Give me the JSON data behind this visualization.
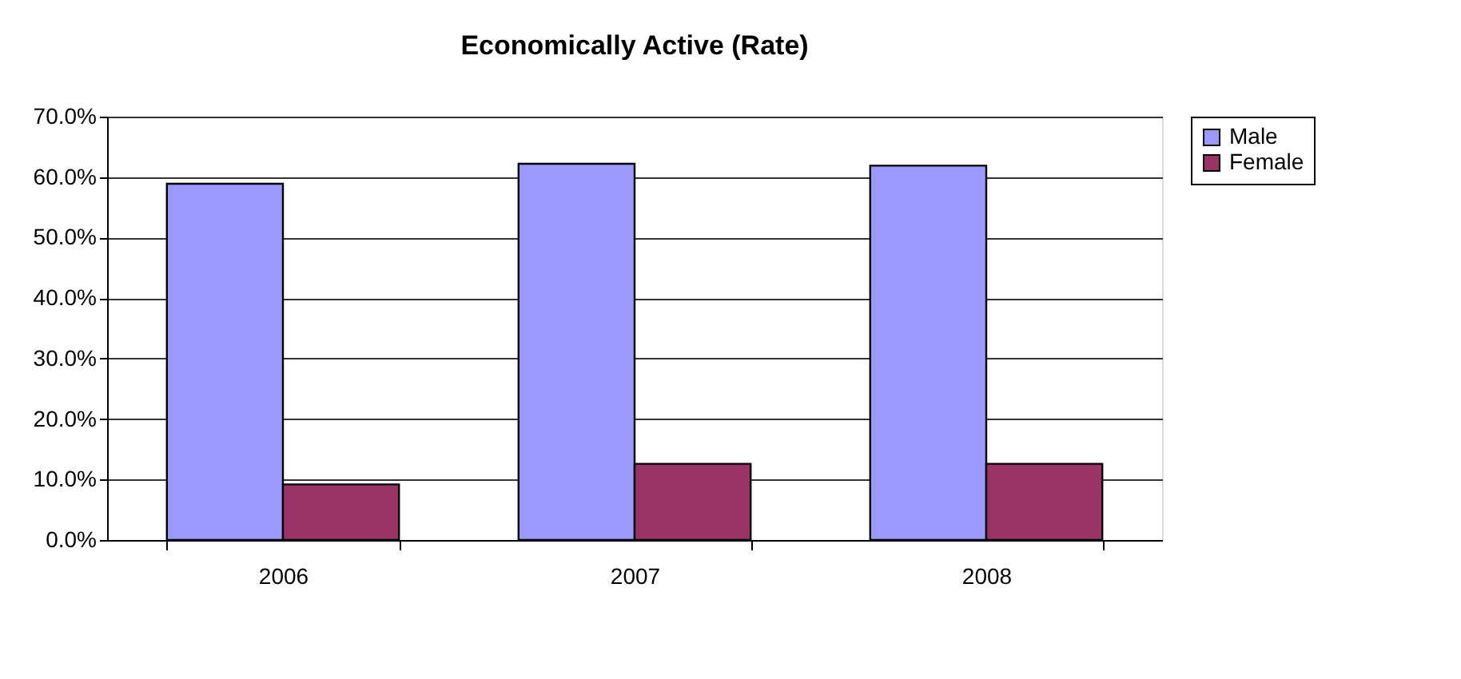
{
  "chart_data": {
    "type": "bar",
    "title": "Economically Active (Rate)",
    "categories": [
      "2006",
      "2007",
      "2008"
    ],
    "series": [
      {
        "name": "Male",
        "color": "#9999ff",
        "values": [
          58.9,
          62.2,
          61.9
        ]
      },
      {
        "name": "Female",
        "color": "#993366",
        "values": [
          9.2,
          12.6,
          12.6
        ]
      }
    ],
    "ylim": [
      0,
      70
    ],
    "yticks": [
      {
        "value": 0,
        "label": "0.0%"
      },
      {
        "value": 10,
        "label": "10.0%"
      },
      {
        "value": 20,
        "label": "20.0%"
      },
      {
        "value": 30,
        "label": "30.0%"
      },
      {
        "value": 40,
        "label": "40.0%"
      },
      {
        "value": 50,
        "label": "50.0%"
      },
      {
        "value": 60,
        "label": "60.0%"
      },
      {
        "value": 70,
        "label": "70.0%"
      }
    ],
    "grid": "y",
    "legend": "right"
  }
}
